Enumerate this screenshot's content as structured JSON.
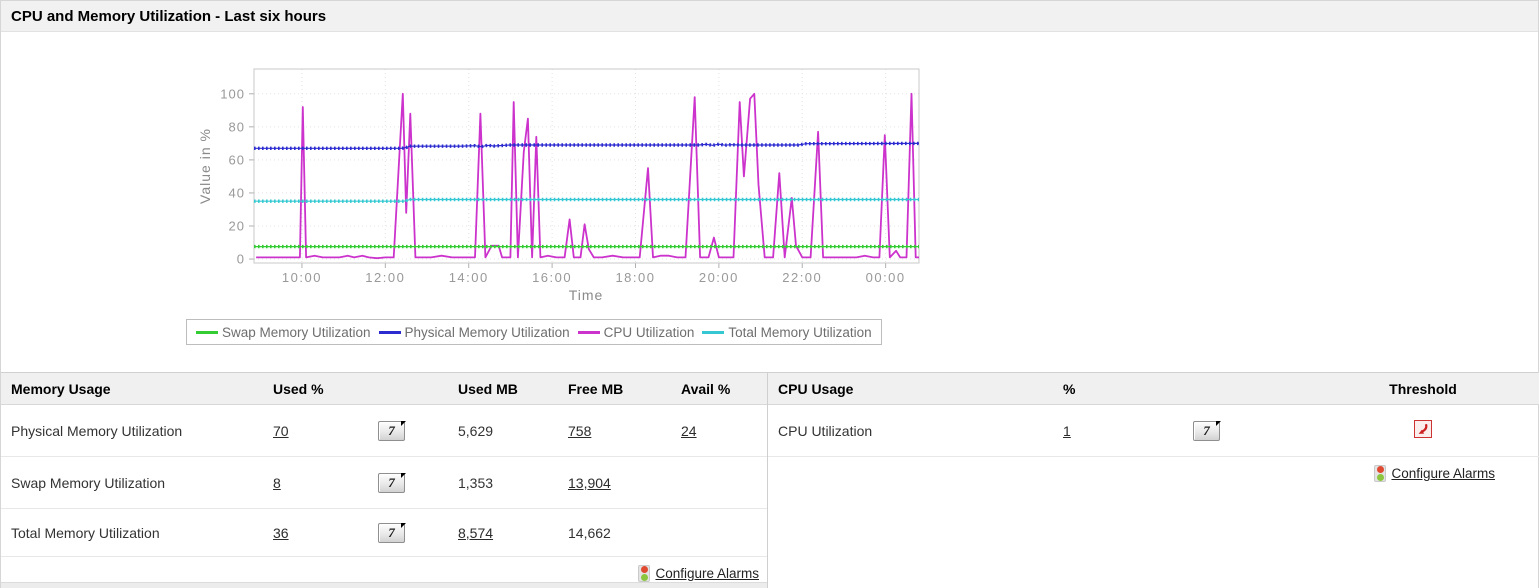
{
  "panel": {
    "title": "CPU and Memory Utilization - Last six hours"
  },
  "chart_data": {
    "type": "line",
    "title": "",
    "xlabel": "Time",
    "ylabel": "Value in %",
    "x_unit": "hour_of_day_decimal (24=midnight)",
    "xlim": [
      8.85,
      24.8
    ],
    "ylim": [
      -2.4,
      115
    ],
    "yticks": [
      0,
      20,
      40,
      60,
      80,
      100
    ],
    "xticks": [
      {
        "v": 10,
        "label": "10:00"
      },
      {
        "v": 12,
        "label": "12:00"
      },
      {
        "v": 14,
        "label": "14:00"
      },
      {
        "v": 16,
        "label": "16:00"
      },
      {
        "v": 18,
        "label": "18:00"
      },
      {
        "v": 20,
        "label": "20:00"
      },
      {
        "v": 22,
        "label": "22:00"
      },
      {
        "v": 24,
        "label": "00:00"
      }
    ],
    "grid": "dotted",
    "legend_position": "bottom",
    "draw_order": [
      2,
      0,
      1,
      3
    ],
    "series": [
      {
        "name": "Swap Memory Utilization",
        "color": "#33cc33",
        "flat": true,
        "points": [
          [
            8.85,
            7.5
          ],
          [
            24.8,
            7.5
          ]
        ]
      },
      {
        "name": "Physical Memory Utilization",
        "color": "#2b2bd0",
        "flat": true,
        "points": [
          [
            8.85,
            67
          ],
          [
            12.4,
            67
          ],
          [
            12.5,
            67.5
          ],
          [
            12.6,
            68.3
          ],
          [
            13.8,
            68.3
          ],
          [
            14.15,
            68.6
          ],
          [
            14.3,
            68
          ],
          [
            14.45,
            68.8
          ],
          [
            14.6,
            68.4
          ],
          [
            15.0,
            69
          ],
          [
            19.5,
            69
          ],
          [
            19.7,
            69.4
          ],
          [
            19.85,
            68.8
          ],
          [
            20.0,
            69.5
          ],
          [
            20.15,
            68.9
          ],
          [
            20.3,
            69.2
          ],
          [
            20.5,
            69
          ],
          [
            21.9,
            69
          ],
          [
            22.1,
            69.8
          ],
          [
            24.8,
            70
          ]
        ]
      },
      {
        "name": "CPU Utilization",
        "color": "#cc33cc",
        "flat": false,
        "points": [
          [
            8.9,
            1
          ],
          [
            9.2,
            1
          ],
          [
            9.5,
            1
          ],
          [
            9.8,
            1
          ],
          [
            9.95,
            1
          ],
          [
            10.02,
            92
          ],
          [
            10.1,
            1
          ],
          [
            10.3,
            2
          ],
          [
            10.5,
            1
          ],
          [
            10.7,
            1
          ],
          [
            10.9,
            1
          ],
          [
            11.1,
            2
          ],
          [
            11.25,
            1
          ],
          [
            11.45,
            2
          ],
          [
            11.6,
            1
          ],
          [
            11.8,
            0.5
          ],
          [
            12.0,
            1
          ],
          [
            12.2,
            1
          ],
          [
            12.42,
            100
          ],
          [
            12.5,
            28
          ],
          [
            12.6,
            88
          ],
          [
            12.72,
            1
          ],
          [
            12.9,
            1
          ],
          [
            13.1,
            1
          ],
          [
            13.35,
            2
          ],
          [
            13.6,
            1
          ],
          [
            13.8,
            1
          ],
          [
            14.0,
            1
          ],
          [
            14.15,
            1
          ],
          [
            14.28,
            88
          ],
          [
            14.4,
            1
          ],
          [
            14.55,
            8
          ],
          [
            14.72,
            8
          ],
          [
            14.8,
            1
          ],
          [
            15.0,
            1
          ],
          [
            15.08,
            95
          ],
          [
            15.18,
            1
          ],
          [
            15.32,
            65
          ],
          [
            15.42,
            85
          ],
          [
            15.52,
            1
          ],
          [
            15.62,
            74
          ],
          [
            15.72,
            1
          ],
          [
            15.9,
            2
          ],
          [
            16.1,
            1
          ],
          [
            16.3,
            1
          ],
          [
            16.42,
            24
          ],
          [
            16.52,
            1
          ],
          [
            16.68,
            1
          ],
          [
            16.78,
            21
          ],
          [
            16.88,
            6
          ],
          [
            17.0,
            1
          ],
          [
            17.2,
            1
          ],
          [
            17.45,
            2
          ],
          [
            17.7,
            1
          ],
          [
            17.9,
            1
          ],
          [
            18.1,
            1
          ],
          [
            18.3,
            55
          ],
          [
            18.42,
            1
          ],
          [
            18.6,
            2
          ],
          [
            18.8,
            2
          ],
          [
            19.0,
            1
          ],
          [
            19.2,
            1
          ],
          [
            19.42,
            98
          ],
          [
            19.55,
            1
          ],
          [
            19.75,
            1
          ],
          [
            19.88,
            13
          ],
          [
            20.0,
            1
          ],
          [
            20.2,
            1
          ],
          [
            20.35,
            1
          ],
          [
            20.5,
            95
          ],
          [
            20.6,
            50
          ],
          [
            20.75,
            97
          ],
          [
            20.85,
            100
          ],
          [
            20.95,
            45
          ],
          [
            21.1,
            1
          ],
          [
            21.3,
            1
          ],
          [
            21.45,
            52
          ],
          [
            21.58,
            1
          ],
          [
            21.75,
            37
          ],
          [
            21.85,
            8
          ],
          [
            22.0,
            1
          ],
          [
            22.2,
            1
          ],
          [
            22.38,
            77
          ],
          [
            22.5,
            1
          ],
          [
            22.7,
            1
          ],
          [
            22.9,
            1
          ],
          [
            23.1,
            1
          ],
          [
            23.3,
            1
          ],
          [
            23.5,
            2
          ],
          [
            23.7,
            1
          ],
          [
            23.85,
            1
          ],
          [
            23.98,
            75
          ],
          [
            24.1,
            1
          ],
          [
            24.25,
            5
          ],
          [
            24.35,
            1
          ],
          [
            24.5,
            1
          ],
          [
            24.62,
            100
          ],
          [
            24.72,
            1
          ],
          [
            24.8,
            1
          ]
        ]
      },
      {
        "name": "Total Memory Utilization",
        "color": "#35c8d2",
        "flat": true,
        "points": [
          [
            8.85,
            35
          ],
          [
            12.45,
            35
          ],
          [
            12.6,
            36
          ],
          [
            24.8,
            36
          ]
        ]
      }
    ]
  },
  "memory_table": {
    "headers": {
      "name": "Memory Usage",
      "used_pct": "Used %",
      "used_mb": "Used MB",
      "free_mb": "Free MB",
      "avail_pct": "Avail %"
    },
    "rows": [
      {
        "name": "Physical Memory Utilization",
        "used_pct": "70",
        "used_mb": "5,629",
        "free_mb": "758",
        "avail_pct": "24"
      },
      {
        "name": "Swap Memory Utilization",
        "used_pct": "8",
        "used_mb": "1,353",
        "free_mb": "13,904",
        "avail_pct": ""
      },
      {
        "name": "Total Memory Utilization",
        "used_pct": "36",
        "used_mb": "8,574",
        "free_mb": "14,662",
        "avail_pct": ""
      }
    ],
    "configure_alarms_label": "Configure Alarms"
  },
  "cpu_table": {
    "headers": {
      "name": "CPU Usage",
      "pct": "%",
      "threshold": "Threshold"
    },
    "rows": [
      {
        "name": "CPU Utilization",
        "pct": "1"
      }
    ],
    "configure_alarms_label": "Configure Alarms"
  },
  "icons": {
    "report_button_label": "7",
    "report_button": "7-day-report-icon",
    "threshold": "threshold-alert-icon",
    "configure_alarms": "traffic-light-icon"
  },
  "colors": {
    "title_bar_bg": "#f1f1f1",
    "table_header_bg": "#f0f0f0",
    "border": "#d0d0d0",
    "axis_text": "#999999",
    "swap": "#33cc33",
    "physical": "#2b2bd0",
    "cpu": "#cc33cc",
    "total": "#35c8d2",
    "threshold_red": "#cc2222",
    "alarm_red": "#e04a30",
    "alarm_green": "#8cc63f"
  }
}
